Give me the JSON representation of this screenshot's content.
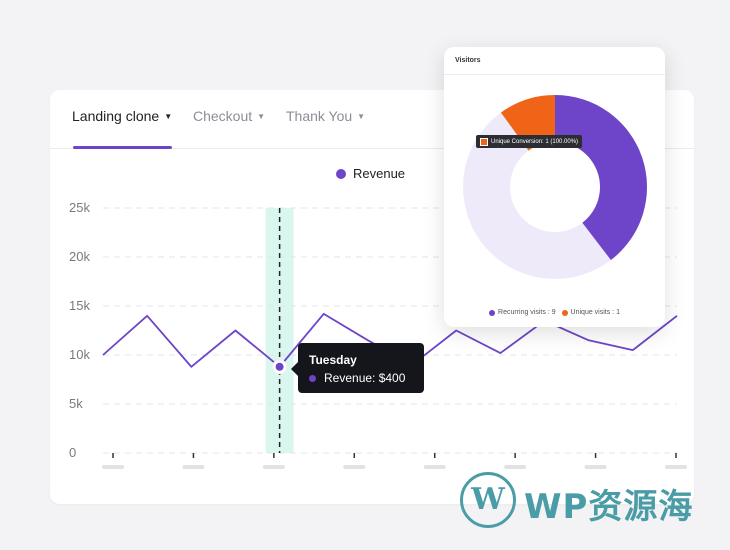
{
  "tabs": [
    {
      "label": "Landing clone",
      "active": true
    },
    {
      "label": "Checkout",
      "active": false
    },
    {
      "label": "Thank You",
      "active": false
    }
  ],
  "legend": {
    "label": "Revenue"
  },
  "tooltip": {
    "title": "Tuesday",
    "row": "Revenue: $400"
  },
  "colors": {
    "accent": "#6e44c9",
    "highlight": "#daf7ef",
    "orange": "#f06418",
    "lavender": "#efeaf9"
  },
  "chart_data": {
    "type": "line",
    "y_ticks": [
      "0",
      "5k",
      "10k",
      "15k",
      "20k",
      "25k"
    ],
    "ylim": [
      0,
      25000
    ],
    "series": [
      {
        "name": "Revenue",
        "values": [
          10000,
          14000,
          8800,
          12500,
          8800,
          14200,
          11500,
          9000,
          12500,
          10200,
          13500,
          11500,
          10500,
          14000
        ]
      }
    ],
    "highlight_index": 4,
    "grid": true
  },
  "visitors": {
    "title": "Visitors",
    "tooltip": "Unique Conversion: 1 (100.00%)",
    "segments": [
      {
        "label": "Recurring visits : 9",
        "value": 9,
        "color": "#6e44c9"
      },
      {
        "label": "Unique visits : 1",
        "value": 1,
        "color": "#f06418"
      }
    ]
  },
  "watermark": {
    "text": "WP资源海",
    "logo_letter": "W"
  }
}
